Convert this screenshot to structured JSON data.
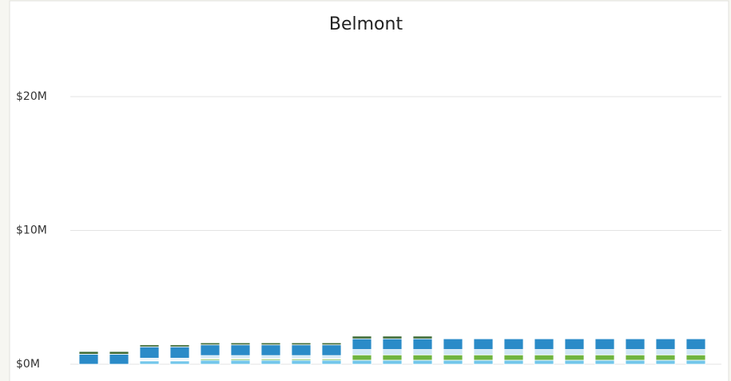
{
  "chart_data": {
    "type": "bar",
    "stacked": true,
    "title": "Belmont",
    "categories": [
      null,
      null,
      null,
      null,
      null,
      null,
      null,
      null,
      null,
      null,
      null,
      null,
      null,
      null,
      null,
      null,
      null,
      null,
      null,
      null,
      null
    ],
    "series": [
      {
        "color": "#72c6ea",
        "values": [
          0,
          0,
          0.25,
          0.25,
          0.3,
          0.3,
          0.3,
          0.3,
          0.3,
          0.3,
          0.3,
          0.3,
          0.3,
          0.3,
          0.3,
          0.3,
          0.3,
          0.3,
          0.3,
          0.3,
          0.3
        ]
      },
      {
        "color": "#6fb43f",
        "values": [
          0,
          0,
          0.05,
          0.05,
          0.1,
          0.1,
          0.1,
          0.1,
          0.1,
          0.4,
          0.4,
          0.4,
          0.4,
          0.4,
          0.4,
          0.4,
          0.4,
          0.4,
          0.4,
          0.4,
          0.4
        ]
      },
      {
        "color": "#1d3550",
        "values": [
          0,
          0,
          0.05,
          0.05,
          0.05,
          0.05,
          0.05,
          0.05,
          0.05,
          0,
          0,
          0,
          0,
          0,
          0,
          0,
          0,
          0,
          0,
          0,
          0
        ]
      },
      {
        "color": "#cfe7f6",
        "values": [
          0,
          0,
          0.1,
          0.1,
          0.2,
          0.2,
          0.2,
          0.2,
          0.2,
          0.4,
          0.4,
          0.4,
          0.4,
          0.4,
          0.4,
          0.4,
          0.4,
          0.4,
          0.4,
          0.4,
          0.4
        ]
      },
      {
        "color": "#2a8bc8",
        "values": [
          0.75,
          0.75,
          0.85,
          0.85,
          0.8,
          0.8,
          0.8,
          0.8,
          0.8,
          0.8,
          0.8,
          0.8,
          0.8,
          0.8,
          0.8,
          0.8,
          0.8,
          0.8,
          0.8,
          0.8,
          0.8
        ]
      },
      {
        "color": "#3e6b35",
        "values": [
          0.2,
          0.2,
          0.15,
          0.15,
          0.15,
          0.15,
          0.15,
          0.15,
          0.15,
          0.2,
          0.2,
          0.2,
          0,
          0,
          0,
          0,
          0,
          0,
          0,
          0,
          0
        ]
      }
    ],
    "ylim": [
      0,
      20
    ],
    "yticks": [
      {
        "value": 0,
        "label": "$0M"
      },
      {
        "value": 10,
        "label": "$10M"
      },
      {
        "value": 20,
        "label": "$20M"
      }
    ],
    "grid": true
  }
}
